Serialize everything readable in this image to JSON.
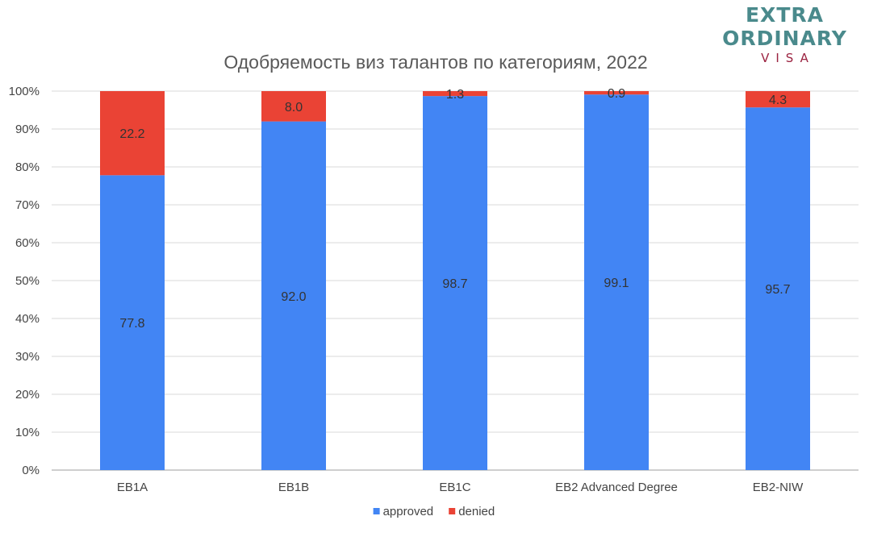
{
  "logo": {
    "line1": "EXTRA",
    "line2": "ORDINARY",
    "line3": "VISA",
    "color_main": "#4a8a8c",
    "color_accent": "#9b2341"
  },
  "chart_data": {
    "type": "bar",
    "stacked": true,
    "title": "Одобряемость виз талантов по категориям, 2022",
    "xlabel": "",
    "ylabel": "",
    "categories": [
      "EB1A",
      "EB1B",
      "EB1C",
      "EB2 Advanced Degree",
      "EB2-NIW"
    ],
    "series": [
      {
        "name": "approved",
        "color": "#4285f4",
        "values": [
          77.8,
          92.0,
          98.7,
          99.1,
          95.7
        ],
        "labels": [
          "77.8",
          "92.0",
          "98.7",
          "99.1",
          "95.7"
        ]
      },
      {
        "name": "denied",
        "color": "#ea4335",
        "values": [
          22.2,
          8.0,
          1.3,
          0.9,
          4.3
        ],
        "labels": [
          "22.2",
          "8.0",
          "1.3",
          "0.9",
          "4.3"
        ]
      }
    ],
    "ylim": [
      0,
      100
    ],
    "y_ticks": [
      "0%",
      "10%",
      "20%",
      "30%",
      "40%",
      "50%",
      "60%",
      "70%",
      "80%",
      "90%",
      "100%"
    ],
    "grid": true,
    "legend_position": "bottom",
    "text_color": "#444444",
    "grid_color": "#d9d9d9"
  }
}
